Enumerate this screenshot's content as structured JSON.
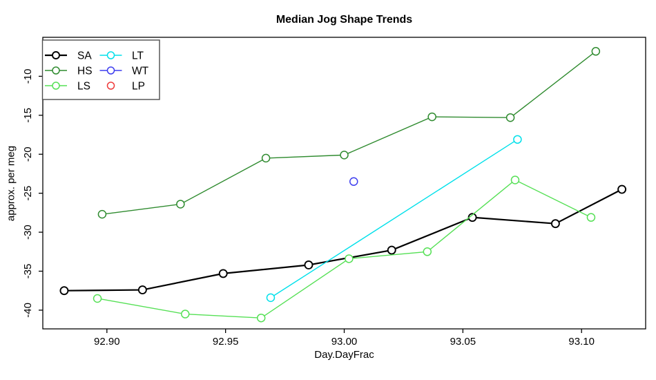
{
  "chart_data": {
    "type": "line",
    "title": "Median Jog Shape Trends",
    "xlabel": "Day.DayFrac",
    "ylabel": "approx. per meg",
    "xlim": [
      92.873,
      93.127
    ],
    "ylim": [
      -42.4,
      -5.0
    ],
    "x_ticks": [
      92.9,
      92.95,
      93.0,
      93.05,
      93.1
    ],
    "y_ticks": [
      -40,
      -35,
      -30,
      -25,
      -20,
      -15,
      -10
    ],
    "grid": false,
    "legend_position": "top-left",
    "marker": "open-circle",
    "series": [
      {
        "name": "SA",
        "color": "#000000",
        "legend_line": true,
        "points": [
          [
            92.882,
            -37.5
          ],
          [
            92.915,
            -37.4
          ],
          [
            92.949,
            -35.3
          ],
          [
            92.985,
            -34.2
          ],
          [
            93.02,
            -32.3
          ],
          [
            93.054,
            -28.1
          ],
          [
            93.089,
            -28.9
          ],
          [
            93.117,
            -24.5
          ]
        ]
      },
      {
        "name": "HS",
        "color": "#2f8b2f",
        "legend_line": true,
        "points": [
          [
            92.898,
            -27.7
          ],
          [
            92.931,
            -26.4
          ],
          [
            92.967,
            -20.5
          ],
          [
            93.0,
            -20.1
          ],
          [
            93.037,
            -15.2
          ],
          [
            93.07,
            -15.3
          ],
          [
            93.106,
            -6.8
          ]
        ]
      },
      {
        "name": "LS",
        "color": "#55e055",
        "legend_line": true,
        "points": [
          [
            92.896,
            -38.5
          ],
          [
            92.933,
            -40.5
          ],
          [
            92.965,
            -41.0
          ],
          [
            93.002,
            -33.4
          ],
          [
            93.035,
            -32.5
          ],
          [
            93.072,
            -23.3
          ],
          [
            93.104,
            -28.1
          ]
        ]
      },
      {
        "name": "LT",
        "color": "#00e0ea",
        "legend_line": true,
        "points": [
          [
            92.969,
            -38.4
          ],
          [
            93.073,
            -18.1
          ]
        ]
      },
      {
        "name": "WT",
        "color": "#3d3def",
        "legend_line": true,
        "points": [
          [
            93.004,
            -23.5
          ]
        ]
      },
      {
        "name": "LP",
        "color": "#ef3b3b",
        "legend_line": false,
        "points": []
      }
    ]
  }
}
